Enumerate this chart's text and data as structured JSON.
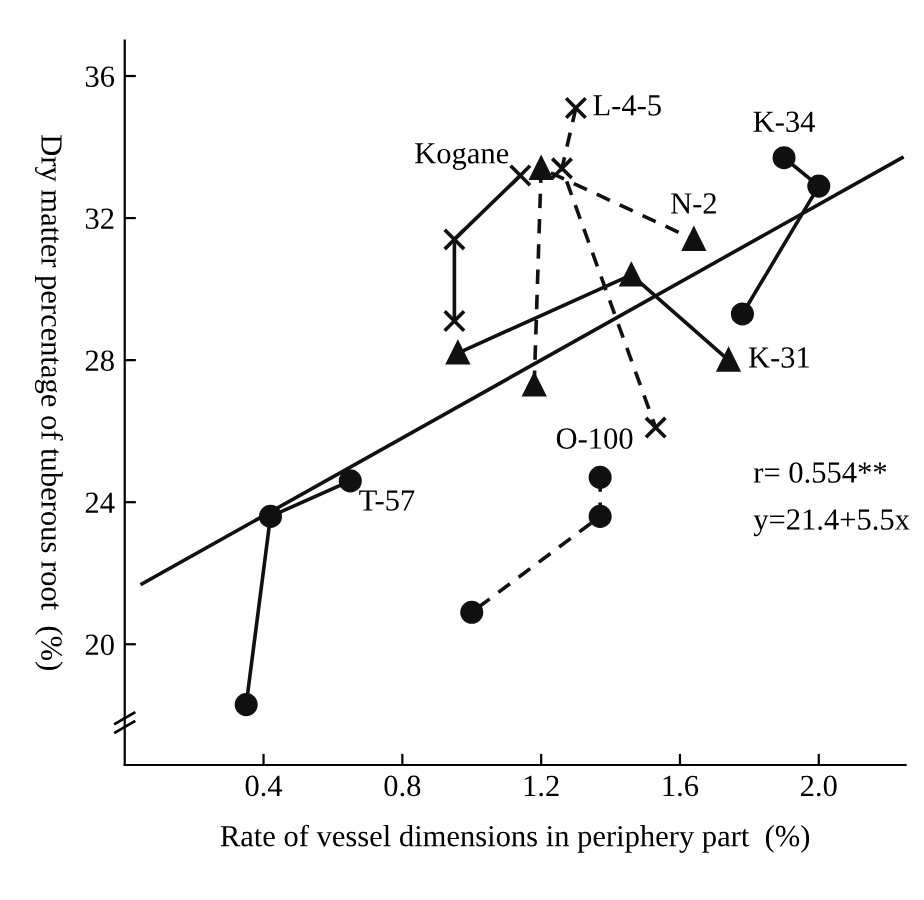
{
  "chart_data": {
    "type": "line",
    "xlabel": "Rate of vessel dimensions in periphery part  (%)",
    "ylabel": "Dry matter percentage of tuberous root  (%)",
    "xlim": [
      0,
      2.25
    ],
    "xticks": [
      {
        "value": 0.4,
        "label": "0.4"
      },
      {
        "value": 0.8,
        "label": "0.8"
      },
      {
        "value": 1.2,
        "label": "1.2"
      },
      {
        "value": 1.6,
        "label": "1.6"
      },
      {
        "value": 2.0,
        "label": "2.0"
      }
    ],
    "ylim": [
      16.6,
      37
    ],
    "yticks": [
      20,
      24,
      28,
      32,
      36
    ],
    "grid": false,
    "legend": false,
    "series": [
      {
        "color": "#111111",
        "marker": "cross",
        "line_style": "solid",
        "x": [
          0.95,
          0.95,
          1.14
        ],
        "values": [
          29.1,
          31.4,
          33.2
        ]
      },
      {
        "color": "#111111",
        "marker": "cross",
        "line_style": "dashed",
        "x": [
          1.3,
          1.26,
          1.53
        ],
        "values": [
          35.1,
          33.4,
          26.1
        ]
      },
      {
        "color": "#111111",
        "marker": "triangle",
        "line_style": "dashed",
        "x": [
          1.18,
          1.2,
          1.64
        ],
        "values": [
          27.3,
          33.4,
          31.4
        ]
      },
      {
        "color": "#111111",
        "marker": "triangle",
        "line_style": "solid",
        "x": [
          0.96,
          1.46,
          1.74
        ],
        "values": [
          28.2,
          30.4,
          28.0
        ]
      },
      {
        "color": "#111111",
        "marker": "circle",
        "line_style": "solid",
        "x": [
          1.9,
          2.0,
          1.78
        ],
        "values": [
          33.7,
          32.9,
          29.3
        ]
      },
      {
        "color": "#111111",
        "marker": "circle",
        "line_style": "solid",
        "x": [
          0.65,
          0.42,
          0.35
        ],
        "values": [
          24.6,
          23.6,
          18.3
        ]
      },
      {
        "color": "#111111",
        "marker": "circle",
        "line_style": "dashed",
        "x": [
          1.37,
          1.37,
          1.0
        ],
        "values": [
          24.7,
          23.6,
          20.9
        ]
      },
      {
        "color": "#111111",
        "marker": "none",
        "line_style": "solid",
        "x": [
          0.05,
          2.24
        ],
        "values": [
          21.7,
          33.7
        ]
      }
    ],
    "annotations": [
      {
        "text": "Kogane",
        "x": 1.14,
        "y": 33.2
      },
      {
        "text": "L-4-5",
        "x": 1.3,
        "y": 35.1
      },
      {
        "text": "K-34",
        "x": 1.9,
        "y": 33.7
      },
      {
        "text": "N-2",
        "x": 1.64,
        "y": 31.4
      },
      {
        "text": "K-31",
        "x": 1.74,
        "y": 28.0
      },
      {
        "text": "O-100",
        "x": 1.37,
        "y": 24.7
      },
      {
        "text": "T-57",
        "x": 0.65,
        "y": 24.6
      },
      "r= 0.554**",
      "y=21.4+5.5x"
    ]
  }
}
